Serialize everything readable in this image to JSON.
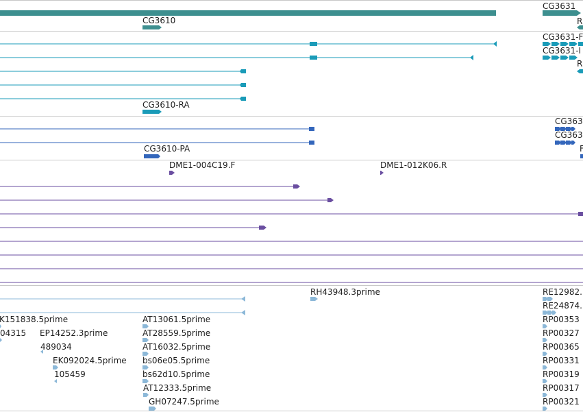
{
  "colors": {
    "gene": "#3d8f8f",
    "mrna": "#1a9bb8",
    "cds": "#3366bb",
    "est_alignment": "#6a4ea0",
    "cdna": "#8cb8d8",
    "divider": "#c8c8c8"
  },
  "tracks": {
    "gene": {
      "labels": [
        {
          "id": "g1",
          "text": "CG3610"
        },
        {
          "id": "g2",
          "text": "CG3631"
        },
        {
          "id": "g3",
          "text": "R"
        }
      ]
    },
    "mrna": {
      "labels": [
        {
          "id": "m1",
          "text": "CG3631-F"
        },
        {
          "id": "m2",
          "text": "CG3631-I"
        },
        {
          "id": "m3",
          "text": "R"
        },
        {
          "id": "m4",
          "text": "CG3610-RA"
        }
      ]
    },
    "cds": {
      "labels": [
        {
          "id": "c1",
          "text": "CG363"
        },
        {
          "id": "c2",
          "text": "CG363"
        },
        {
          "id": "c3",
          "text": "F"
        },
        {
          "id": "c4",
          "text": "CG3610-PA"
        }
      ]
    },
    "est": {
      "labels": [
        {
          "id": "e1",
          "text": "DME1-004C19.F"
        },
        {
          "id": "e2",
          "text": "DME1-012K06.R"
        }
      ]
    },
    "cdna": {
      "labels": [
        {
          "id": "d1",
          "text": "RH43948.3prime"
        },
        {
          "id": "d2",
          "text": "RE12982."
        },
        {
          "id": "d3",
          "text": "RE24874."
        },
        {
          "id": "d4",
          "text": "K151838.5prime"
        },
        {
          "id": "d5",
          "text": "AT13061.5prime"
        },
        {
          "id": "d6",
          "text": "RP00353"
        },
        {
          "id": "d7",
          "text": "04315"
        },
        {
          "id": "d8",
          "text": "EP14252.3prime"
        },
        {
          "id": "d9",
          "text": "AT28559.5prime"
        },
        {
          "id": "d10",
          "text": "RP00327"
        },
        {
          "id": "d11",
          "text": "489034"
        },
        {
          "id": "d12",
          "text": "AT16032.5prime"
        },
        {
          "id": "d13",
          "text": "RP00365"
        },
        {
          "id": "d14",
          "text": "EK092024.5prime"
        },
        {
          "id": "d15",
          "text": "bs06e05.5prime"
        },
        {
          "id": "d16",
          "text": "RP00331"
        },
        {
          "id": "d17",
          "text": "105459"
        },
        {
          "id": "d18",
          "text": "bs62d10.5prime"
        },
        {
          "id": "d19",
          "text": "RP00319"
        },
        {
          "id": "d20",
          "text": "AT12333.5prime"
        },
        {
          "id": "d21",
          "text": "RP00317"
        },
        {
          "id": "d22",
          "text": "GH07247.5prime"
        },
        {
          "id": "d23",
          "text": "RP00321"
        }
      ]
    }
  }
}
